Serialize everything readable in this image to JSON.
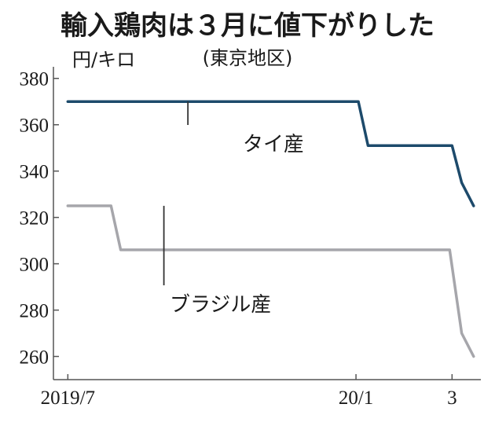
{
  "chart_data": {
    "type": "line",
    "title": "輸入鶏肉は３月に値下がりした",
    "subtitle": "(東京地区)",
    "ylabel": "円/キロ",
    "xlabel": "",
    "ylim": [
      250,
      385
    ],
    "yticks": [
      260,
      280,
      300,
      320,
      340,
      360,
      380
    ],
    "x_tick_labels": [
      {
        "label": "2019/7",
        "x": 0
      },
      {
        "label": "20/1",
        "x": 6
      },
      {
        "label": "3",
        "x": 8
      }
    ],
    "xlim": [
      -0.3,
      8.6
    ],
    "grid": false,
    "series": [
      {
        "name": "タイ産",
        "color": "#1d4a6b",
        "points": [
          {
            "x": 0,
            "y": 370
          },
          {
            "x": 6.05,
            "y": 370
          },
          {
            "x": 6.25,
            "y": 351
          },
          {
            "x": 8.0,
            "y": 351
          },
          {
            "x": 8.2,
            "y": 335
          },
          {
            "x": 8.45,
            "y": 325
          }
        ]
      },
      {
        "name": "ブラジル産",
        "color": "#a6a6ab",
        "points": [
          {
            "x": 0,
            "y": 325
          },
          {
            "x": 0.9,
            "y": 325
          },
          {
            "x": 1.1,
            "y": 306
          },
          {
            "x": 7.95,
            "y": 306
          },
          {
            "x": 8.2,
            "y": 270
          },
          {
            "x": 8.45,
            "y": 260
          }
        ]
      }
    ]
  }
}
